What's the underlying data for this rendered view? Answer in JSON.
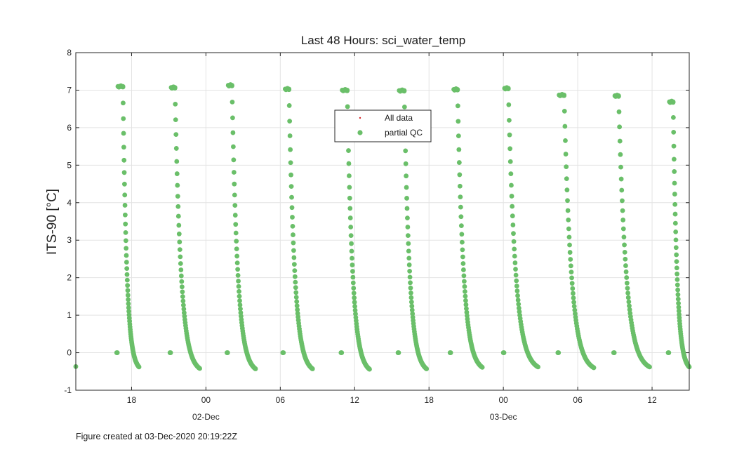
{
  "footer": "Figure created at 03-Dec-2020 20:19:22Z",
  "chart_data": {
    "type": "scatter",
    "title": "Last 48 Hours: sci_water_temp",
    "ylabel": "ITS-90 [°C]",
    "xlabel": "",
    "ylim": [
      -1,
      8
    ],
    "yticks": [
      -1,
      0,
      1,
      2,
      3,
      4,
      5,
      6,
      7,
      8
    ],
    "x_unit": "hours since 01-Dec 00:00",
    "xlim": [
      13.5,
      63.0
    ],
    "xticks": [
      {
        "x": 18,
        "label": "18"
      },
      {
        "x": 24,
        "label": "00"
      },
      {
        "x": 30,
        "label": "06"
      },
      {
        "x": 36,
        "label": "12"
      },
      {
        "x": 42,
        "label": "18"
      },
      {
        "x": 48,
        "label": "00"
      },
      {
        "x": 54,
        "label": "06"
      },
      {
        "x": 60,
        "label": "12"
      }
    ],
    "date_labels": [
      {
        "x": 24,
        "label": "02-Dec"
      },
      {
        "x": 48,
        "label": "03-Dec"
      }
    ],
    "grid": true,
    "legend": {
      "placement": "top-center",
      "entries": [
        {
          "label": "All data",
          "color": "#d62728",
          "marker": "dot-small"
        },
        {
          "label": "partial QC",
          "color": "#6abf69",
          "marker": "dot"
        }
      ]
    },
    "series_color": "#6abf69",
    "profiles": [
      {
        "surface_x": 16.8,
        "top_start_x": 16.9,
        "top_end_x": 17.3,
        "top_value": 7.1,
        "bottom_x": 18.6,
        "bottom_value": -0.38
      },
      {
        "surface_x": 21.1,
        "top_start_x": 21.2,
        "top_end_x": 21.5,
        "top_value": 7.07,
        "bottom_x": 23.5,
        "bottom_value": -0.42
      },
      {
        "surface_x": 25.7,
        "top_start_x": 25.8,
        "top_end_x": 26.1,
        "top_value": 7.13,
        "bottom_x": 28.0,
        "bottom_value": -0.43
      },
      {
        "surface_x": 30.2,
        "top_start_x": 30.4,
        "top_end_x": 30.7,
        "top_value": 7.03,
        "bottom_x": 32.6,
        "bottom_value": -0.43
      },
      {
        "surface_x": 34.9,
        "top_start_x": 35.0,
        "top_end_x": 35.4,
        "top_value": 7.0,
        "bottom_x": 37.2,
        "bottom_value": -0.44
      },
      {
        "surface_x": 39.5,
        "top_start_x": 39.6,
        "top_end_x": 40.0,
        "top_value": 6.99,
        "bottom_x": 41.8,
        "bottom_value": -0.43
      },
      {
        "surface_x": 43.7,
        "top_start_x": 44.0,
        "top_end_x": 44.3,
        "top_value": 7.02,
        "bottom_x": 46.3,
        "bottom_value": -0.39
      },
      {
        "surface_x": 48.0,
        "top_start_x": 48.1,
        "top_end_x": 48.4,
        "top_value": 7.05,
        "bottom_x": 50.8,
        "bottom_value": -0.38
      },
      {
        "surface_x": 52.4,
        "top_start_x": 52.5,
        "top_end_x": 52.9,
        "top_value": 6.87,
        "bottom_x": 55.3,
        "bottom_value": -0.4
      },
      {
        "surface_x": 56.9,
        "top_start_x": 57.0,
        "top_end_x": 57.3,
        "top_value": 6.85,
        "bottom_x": 59.8,
        "bottom_value": -0.38
      },
      {
        "surface_x": 61.3,
        "top_start_x": 61.4,
        "top_end_x": 61.7,
        "top_value": 6.69,
        "bottom_x": 63.0,
        "bottom_value": -0.38
      }
    ],
    "extra_points": [
      {
        "x": 13.5,
        "y": -0.37
      }
    ]
  }
}
